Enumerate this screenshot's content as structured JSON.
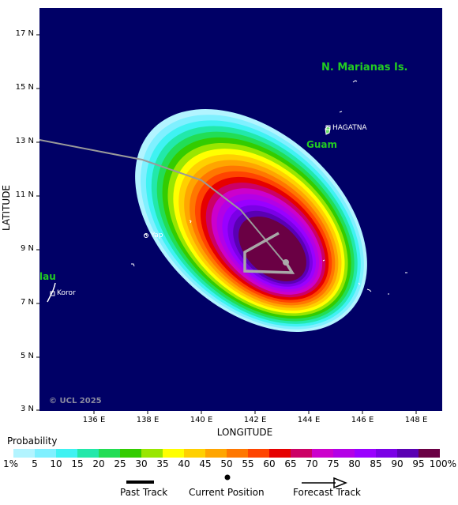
{
  "map": {
    "background_color": "#000066",
    "land_color": "#ffffff",
    "y_axis_title": "LATITUDE",
    "x_axis_title": "LONGITUDE",
    "lat_ticks": [
      "17 N",
      "15 N",
      "13 N",
      "11 N",
      "9 N",
      "7 N",
      "5 N",
      "3 N"
    ],
    "lon_ticks": [
      "136 E",
      "138 E",
      "140 E",
      "142 E",
      "144 E",
      "146 E",
      "148 E"
    ],
    "region_labels": {
      "marianas": "N. Marianas Is.",
      "guam": "Guam",
      "palau_partial": "lau"
    },
    "place_labels": {
      "hagatna": "HAGATNA",
      "yap": "Yap",
      "koror": "Koror"
    },
    "label_color": "#22cc22",
    "copyright": "© UCL 2025"
  },
  "legend": {
    "title": "Probability",
    "colors": [
      "#b2f4ff",
      "#7ff0ff",
      "#3ff2f2",
      "#22e8aa",
      "#22dd55",
      "#33cc00",
      "#99e600",
      "#ffff00",
      "#ffd000",
      "#ffa500",
      "#ff7700",
      "#ff4400",
      "#e60000",
      "#cc0066",
      "#cc00cc",
      "#b300e6",
      "#9900ff",
      "#7a00e6",
      "#5a00b3",
      "#6a0044"
    ],
    "labels": [
      "1%",
      "5",
      "10",
      "15",
      "20",
      "25",
      "30",
      "35",
      "40",
      "45",
      "50",
      "55",
      "60",
      "65",
      "70",
      "75",
      "80",
      "85",
      "90",
      "95",
      "100%"
    ]
  },
  "key": {
    "past": "Past Track",
    "current": "Current Position",
    "forecast": "Forecast Track"
  }
}
